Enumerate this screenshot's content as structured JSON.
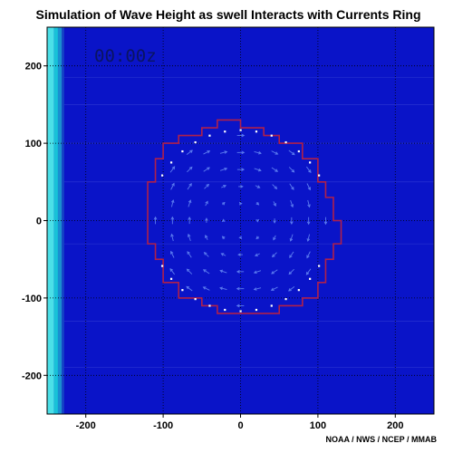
{
  "chart_data": {
    "type": "heatmap",
    "title": "Simulation of Wave Height as swell Interacts with Currents Ring",
    "timestamp": "00:00z",
    "credit": "NOAA / NWS / NCEP / MMAB",
    "xlabel": "",
    "ylabel": "",
    "xlim": [
      -250,
      250
    ],
    "ylim": [
      -250,
      250
    ],
    "x_ticks": [
      -200,
      -100,
      0,
      100,
      200
    ],
    "y_ticks": [
      200,
      100,
      0,
      -100,
      -200
    ],
    "x_tick_labels": [
      "-200",
      "-100",
      "0",
      "100",
      "200"
    ],
    "y_tick_labels": [
      "200",
      "100",
      "0",
      "-100",
      "-200"
    ],
    "grid": true,
    "colors": {
      "background_field": "#0a14c8",
      "boundary_bands": [
        "#4be0e8",
        "#18c2d8",
        "#1a8fd0",
        "#1546c4"
      ],
      "ring_outline": "#b0204a",
      "current_arrows": "#5c7cf0",
      "ring_markers": "#ffffff"
    },
    "boundary_bands_x": [
      [
        -250,
        -241
      ],
      [
        -241,
        -236
      ],
      [
        -236,
        -231
      ],
      [
        -231,
        -228
      ]
    ],
    "current_ring": {
      "center": [
        0,
        0
      ],
      "radius": 125,
      "rotation": "clockwise"
    }
  }
}
